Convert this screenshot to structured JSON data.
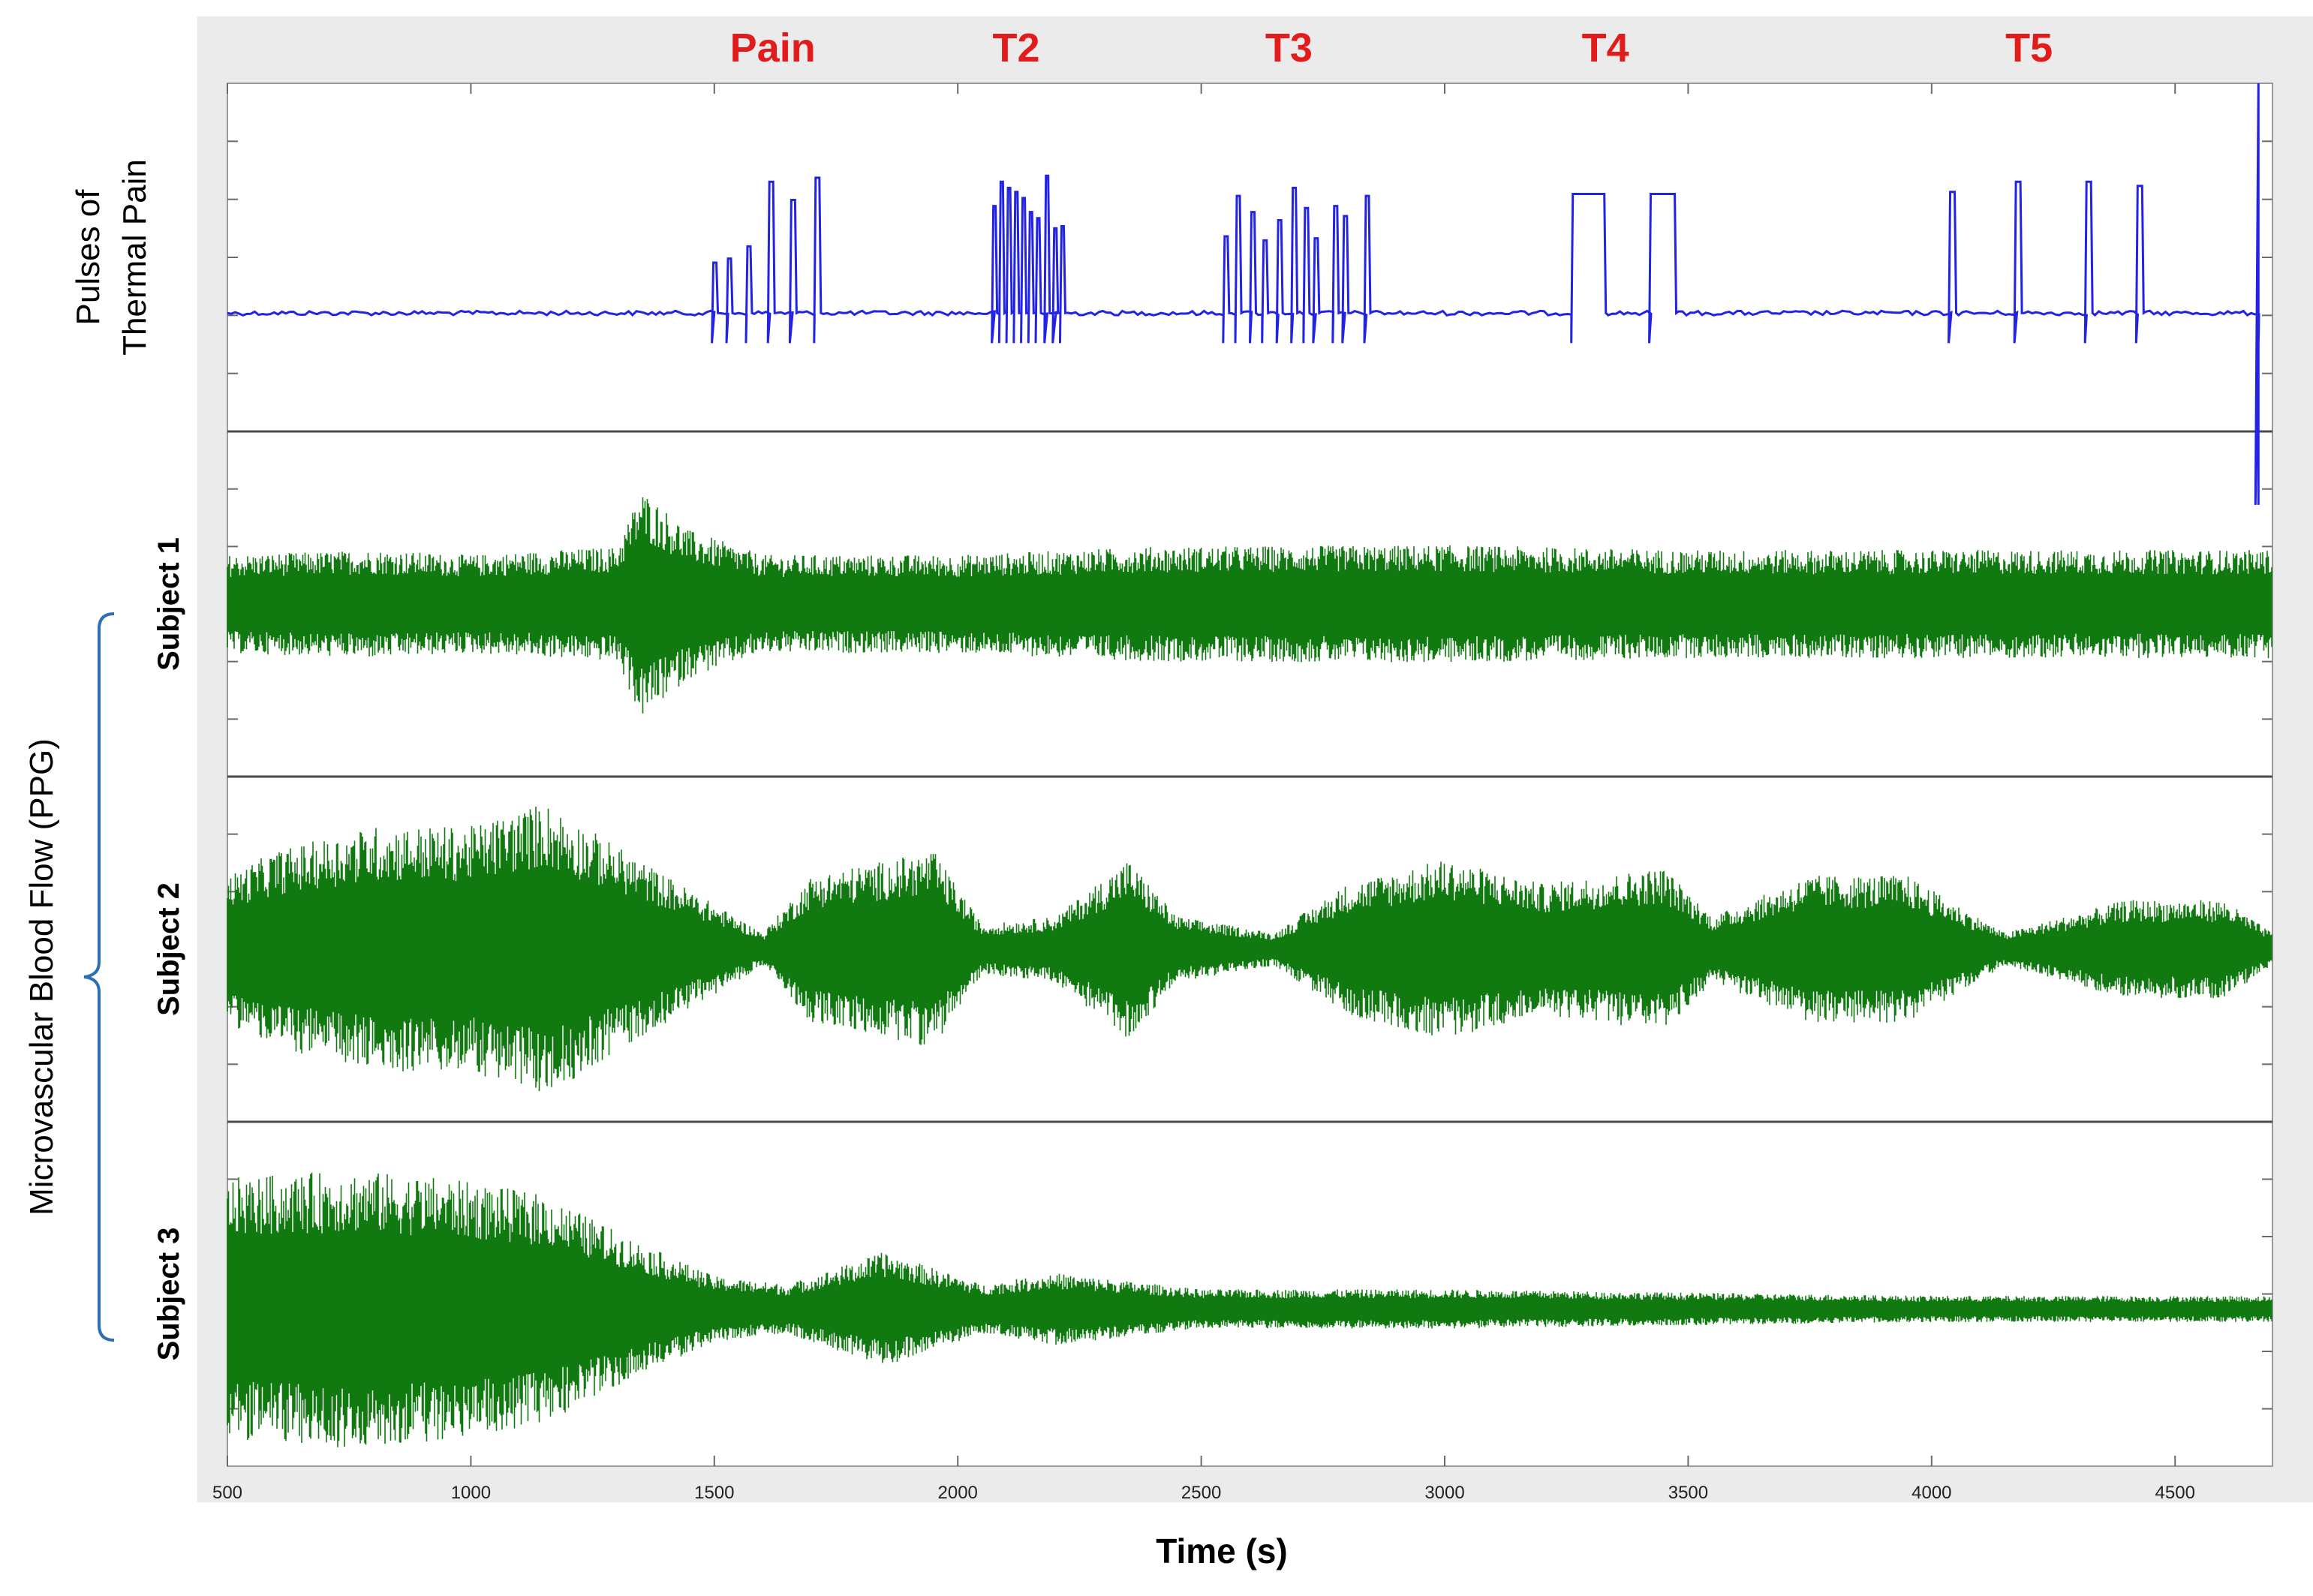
{
  "figure": {
    "xlabel": "Time (s)",
    "colors": {
      "pain": "#2323e6",
      "ppg": "#107a10",
      "annotation": "#e21b1b",
      "frame": "#ebebeb"
    }
  },
  "chart_data": [
    {
      "type": "line",
      "ylabel": [
        "Pulses of",
        "Thermal Pain"
      ],
      "x_ticks": [
        500,
        1000,
        1500,
        2000,
        2500,
        3000,
        3500,
        4000,
        4500
      ],
      "xlim": [
        500,
        4700
      ],
      "annotations": [
        {
          "label": "Pain",
          "x": 1620
        },
        {
          "label": "T2",
          "x": 2120
        },
        {
          "label": "T3",
          "x": 2680
        },
        {
          "label": "T4",
          "x": 3330
        },
        {
          "label": "T5",
          "x": 4200
        }
      ],
      "series": [
        {
          "baseline": 0,
          "pulses": [
            {
              "x": 1495,
              "y": 0.25,
              "w": 6
            },
            {
              "x": 1525,
              "y": 0.27,
              "w": 6
            },
            {
              "x": 1565,
              "y": 0.33,
              "w": 6
            },
            {
              "x": 1610,
              "y": 0.65,
              "w": 7
            },
            {
              "x": 1655,
              "y": 0.56,
              "w": 7
            },
            {
              "x": 1705,
              "y": 0.67,
              "w": 7
            },
            {
              "x": 2070,
              "y": 0.53,
              "w": 5
            },
            {
              "x": 2085,
              "y": 0.65,
              "w": 5
            },
            {
              "x": 2100,
              "y": 0.62,
              "w": 5
            },
            {
              "x": 2115,
              "y": 0.6,
              "w": 5
            },
            {
              "x": 2130,
              "y": 0.57,
              "w": 5
            },
            {
              "x": 2145,
              "y": 0.5,
              "w": 5
            },
            {
              "x": 2160,
              "y": 0.47,
              "w": 5
            },
            {
              "x": 2178,
              "y": 0.68,
              "w": 5
            },
            {
              "x": 2195,
              "y": 0.42,
              "w": 5
            },
            {
              "x": 2210,
              "y": 0.43,
              "w": 5
            },
            {
              "x": 2545,
              "y": 0.38,
              "w": 6
            },
            {
              "x": 2570,
              "y": 0.58,
              "w": 6
            },
            {
              "x": 2600,
              "y": 0.5,
              "w": 6
            },
            {
              "x": 2625,
              "y": 0.36,
              "w": 6
            },
            {
              "x": 2655,
              "y": 0.46,
              "w": 6
            },
            {
              "x": 2685,
              "y": 0.62,
              "w": 6
            },
            {
              "x": 2710,
              "y": 0.52,
              "w": 6
            },
            {
              "x": 2730,
              "y": 0.37,
              "w": 6
            },
            {
              "x": 2770,
              "y": 0.53,
              "w": 6
            },
            {
              "x": 2790,
              "y": 0.48,
              "w": 6
            },
            {
              "x": 2835,
              "y": 0.58,
              "w": 6
            },
            {
              "x": 3260,
              "y": 0.59,
              "w": 44
            },
            {
              "x": 3420,
              "y": 0.59,
              "w": 34
            },
            {
              "x": 4035,
              "y": 0.6,
              "w": 8
            },
            {
              "x": 4170,
              "y": 0.65,
              "w": 8
            },
            {
              "x": 4315,
              "y": 0.65,
              "w": 8
            },
            {
              "x": 4420,
              "y": 0.63,
              "w": 8
            }
          ],
          "end_drop": {
            "x": 4665,
            "y": -0.95
          }
        }
      ]
    },
    {
      "type": "line",
      "ylabel": "Subject  1",
      "series": [
        {
          "amplitude_envelope": [
            [
              500,
              0.3
            ],
            [
              800,
              0.33
            ],
            [
              1000,
              0.3
            ],
            [
              1300,
              0.35
            ],
            [
              1350,
              0.7
            ],
            [
              1450,
              0.45
            ],
            [
              1600,
              0.3
            ],
            [
              2000,
              0.3
            ],
            [
              2400,
              0.35
            ],
            [
              3000,
              0.36
            ],
            [
              3500,
              0.33
            ],
            [
              4000,
              0.33
            ],
            [
              4500,
              0.33
            ],
            [
              4700,
              0.33
            ]
          ]
        }
      ]
    },
    {
      "type": "line",
      "ylabel": "Subject  2",
      "series": [
        {
          "amplitude_envelope": [
            [
              500,
              0.45
            ],
            [
              600,
              0.6
            ],
            [
              800,
              0.75
            ],
            [
              1000,
              0.75
            ],
            [
              1150,
              0.9
            ],
            [
              1400,
              0.45
            ],
            [
              1600,
              0.1
            ],
            [
              1700,
              0.45
            ],
            [
              1950,
              0.6
            ],
            [
              2050,
              0.15
            ],
            [
              2200,
              0.2
            ],
            [
              2350,
              0.55
            ],
            [
              2450,
              0.2
            ],
            [
              2650,
              0.1
            ],
            [
              2800,
              0.4
            ],
            [
              3000,
              0.55
            ],
            [
              3200,
              0.4
            ],
            [
              3450,
              0.5
            ],
            [
              3550,
              0.2
            ],
            [
              3750,
              0.45
            ],
            [
              3950,
              0.45
            ],
            [
              4150,
              0.1
            ],
            [
              4400,
              0.3
            ],
            [
              4600,
              0.3
            ],
            [
              4700,
              0.1
            ]
          ]
        }
      ]
    },
    {
      "type": "line",
      "ylabel": "Subject  3",
      "series": [
        {
          "amplitude_envelope": [
            [
              500,
              0.8
            ],
            [
              750,
              0.85
            ],
            [
              950,
              0.8
            ],
            [
              1150,
              0.7
            ],
            [
              1350,
              0.4
            ],
            [
              1500,
              0.2
            ],
            [
              1650,
              0.15
            ],
            [
              1850,
              0.35
            ],
            [
              2050,
              0.15
            ],
            [
              2200,
              0.22
            ],
            [
              2500,
              0.12
            ],
            [
              3000,
              0.12
            ],
            [
              3500,
              0.1
            ],
            [
              4000,
              0.08
            ],
            [
              4700,
              0.08
            ]
          ]
        }
      ]
    }
  ],
  "group_label": "Microvascular Blood Flow (PPG)"
}
